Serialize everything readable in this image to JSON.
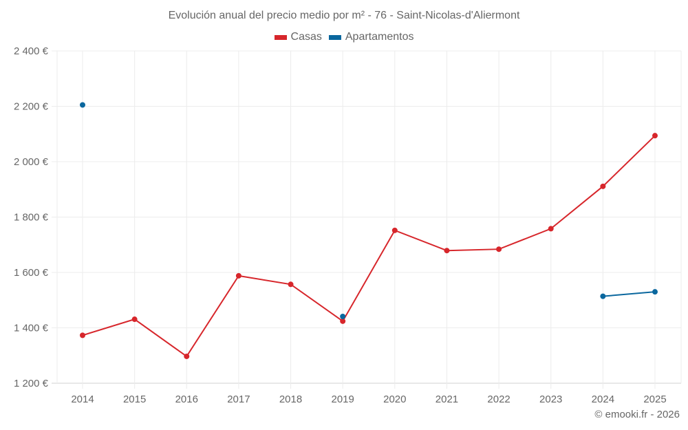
{
  "chart_data": {
    "type": "line",
    "title": "Evolución anual del precio medio por m² - 76 - Saint-Nicolas-d'Aliermont",
    "xlabel": "",
    "ylabel": "",
    "categories": [
      "2014",
      "2015",
      "2016",
      "2017",
      "2018",
      "2019",
      "2020",
      "2021",
      "2022",
      "2023",
      "2024",
      "2025"
    ],
    "ylim": [
      1200,
      2400
    ],
    "yticks": [
      1200,
      1400,
      1600,
      1800,
      2000,
      2200,
      2400
    ],
    "ytick_labels": [
      "1 200 €",
      "1 400 €",
      "1 600 €",
      "1 800 €",
      "2 000 €",
      "2 200 €",
      "2 400 €"
    ],
    "grid": true,
    "legend_position": "top",
    "series": [
      {
        "name": "Casas",
        "color": "#d7262b",
        "values": [
          1373,
          1431,
          1297,
          1588,
          1557,
          1424,
          1752,
          1679,
          1684,
          1758,
          1911,
          2094
        ]
      },
      {
        "name": "Apartamentos",
        "color": "#0a679e",
        "values": [
          2205,
          null,
          null,
          null,
          null,
          1441,
          null,
          null,
          null,
          null,
          1514,
          1530
        ]
      }
    ]
  },
  "header": {
    "title": "Evolución anual del precio medio por m² - 76 - Saint-Nicolas-d'Aliermont"
  },
  "legend": [
    {
      "label": "Casas",
      "color": "#d7262b"
    },
    {
      "label": "Apartamentos",
      "color": "#0a679e"
    }
  ],
  "footer": {
    "credit": "© emooki.fr - 2026"
  }
}
